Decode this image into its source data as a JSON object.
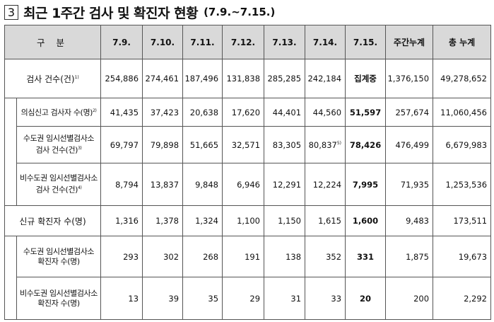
{
  "title": {
    "number": "3",
    "text": "최근 1주간 검사 및 확진자 현황",
    "range": "(7.9.~7.15.)"
  },
  "table": {
    "header": {
      "label": "구 분",
      "dates": [
        "7.9.",
        "7.10.",
        "7.11.",
        "7.12.",
        "7.13.",
        "7.14.",
        "7.15."
      ],
      "weekly": "주간누계",
      "total": "총 누계"
    },
    "rows": [
      {
        "label": "검사 건수(건)",
        "note": "1)",
        "values": [
          "254,886",
          "274,461",
          "187,496",
          "131,838",
          "285,285",
          "242,184"
        ],
        "latest": "집계중",
        "weekly": "1,376,150",
        "total": "49,278,652"
      },
      {
        "label": "의심신고 검사자 수(명)",
        "note": "2)",
        "values": [
          "41,435",
          "37,423",
          "20,638",
          "17,620",
          "44,401",
          "44,560"
        ],
        "latest": "51,597",
        "weekly": "257,674",
        "total": "11,060,456"
      },
      {
        "label_line1": "수도권 임시선별검사소",
        "label_line2": "검사 건수(건)",
        "note": "3)",
        "values": [
          "69,797",
          "79,898",
          "51,665",
          "32,571",
          "83,305",
          "80,837"
        ],
        "value6_note": "5)",
        "latest": "78,426",
        "weekly": "476,499",
        "total": "6,679,983"
      },
      {
        "label_line1": "비수도권 임시선별검사소",
        "label_line2": "검사 건수(건)",
        "note": "4)",
        "values": [
          "8,794",
          "13,837",
          "9,848",
          "6,946",
          "12,291",
          "12,224"
        ],
        "latest": "7,995",
        "weekly": "71,935",
        "total": "1,253,536"
      },
      {
        "label": "신규 확진자 수(명)",
        "values": [
          "1,316",
          "1,378",
          "1,324",
          "1,100",
          "1,150",
          "1,615"
        ],
        "latest": "1,600",
        "weekly": "9,483",
        "total": "173,511"
      },
      {
        "label_line1": "수도권 임시선별검사소",
        "label_line2": "확진자 수(명)",
        "values": [
          "293",
          "302",
          "268",
          "191",
          "138",
          "352"
        ],
        "latest": "331",
        "weekly": "1,875",
        "total": "19,673"
      },
      {
        "label_line1": "비수도권 임시선별검사소",
        "label_line2": "확진자 수(명)",
        "values": [
          "13",
          "39",
          "35",
          "29",
          "31",
          "33"
        ],
        "latest": "20",
        "weekly": "200",
        "total": "2,292"
      }
    ]
  }
}
